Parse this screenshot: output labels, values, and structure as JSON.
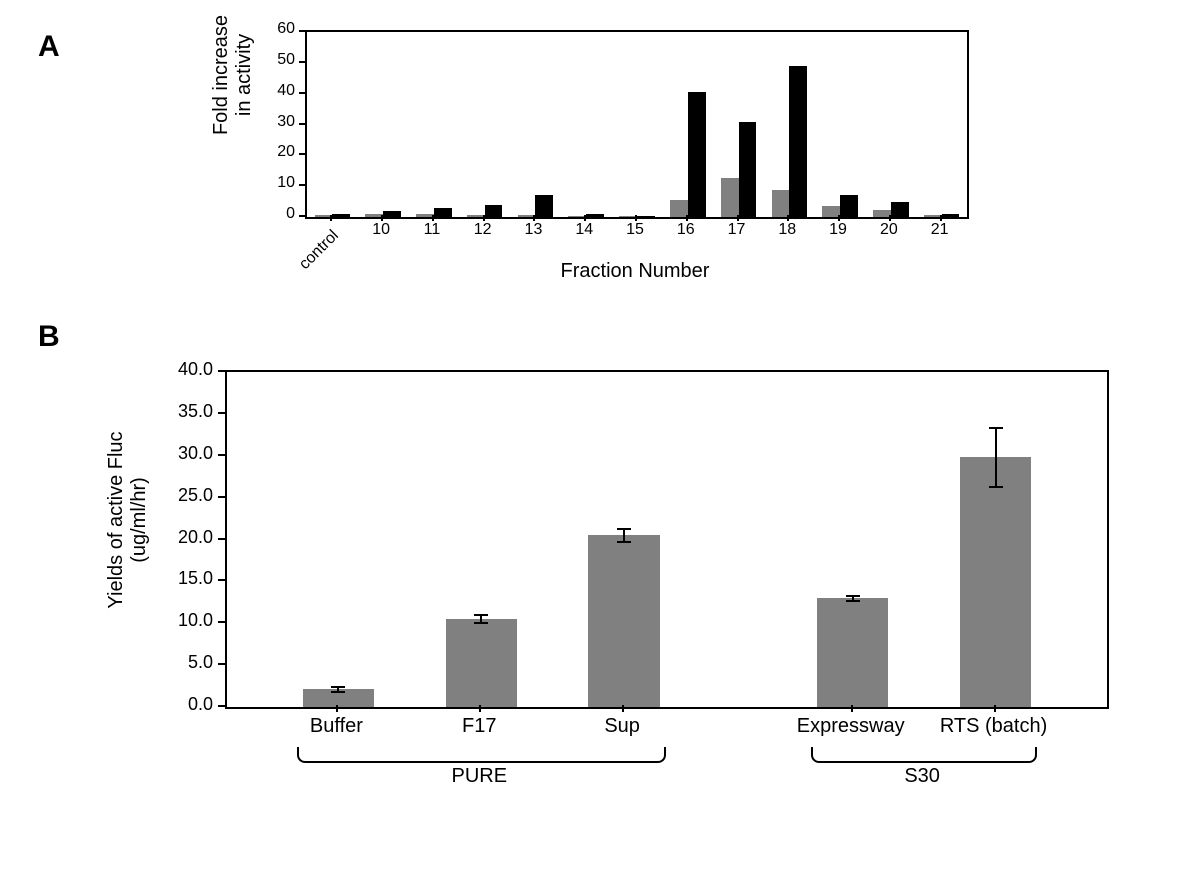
{
  "panelA": {
    "label": "A",
    "type": "bar",
    "ylabel_line1": "Fold increase",
    "ylabel_line2": "in activity",
    "xlabel": "Fraction Number",
    "ylim": [
      0,
      60
    ],
    "yticks": [
      0,
      10,
      20,
      30,
      40,
      50,
      60
    ],
    "categories": [
      "control",
      "10",
      "11",
      "12",
      "13",
      "14",
      "15",
      "16",
      "17",
      "18",
      "19",
      "20",
      "21"
    ],
    "series_gray": {
      "color": "#808080",
      "values": [
        0.8,
        1.0,
        1.0,
        0.8,
        0.5,
        0.3,
        0.2,
        5.5,
        12.8,
        8.8,
        3.7,
        2.3,
        0.7
      ]
    },
    "series_black": {
      "color": "#000000",
      "values": [
        1.0,
        2.0,
        2.8,
        3.8,
        7.0,
        1.0,
        0.3,
        40.5,
        30.8,
        49.0,
        7.3,
        5.0,
        1.0
      ]
    },
    "bar_width": 0.35,
    "border": "#000000",
    "background": "#ffffff",
    "title_fontsize": 20,
    "tick_fontsize": 16
  },
  "panelB": {
    "label": "B",
    "type": "bar",
    "ylabel_line1": "Yields of active Fluc",
    "ylabel_line2": "(ug/ml/hr)",
    "ylim": [
      0,
      40
    ],
    "yticks": [
      0.0,
      5.0,
      10.0,
      15.0,
      20.0,
      25.0,
      30.0,
      35.0,
      40.0
    ],
    "ytick_decimals": 1,
    "categories": [
      "Buffer",
      "F17",
      "Sup",
      "Expressway",
      "RTS (batch)"
    ],
    "values": [
      2.1,
      10.5,
      20.5,
      13.0,
      29.8
    ],
    "errors": [
      0.3,
      0.5,
      0.8,
      0.3,
      3.5
    ],
    "bar_color": "#808080",
    "bar_width": 0.5,
    "border": "#000000",
    "background": "#ffffff",
    "groups": [
      {
        "label": "PURE",
        "from": 0,
        "to": 2
      },
      {
        "label": "S30",
        "from": 3,
        "to": 4
      }
    ],
    "title_fontsize": 20,
    "tick_fontsize": 18
  }
}
